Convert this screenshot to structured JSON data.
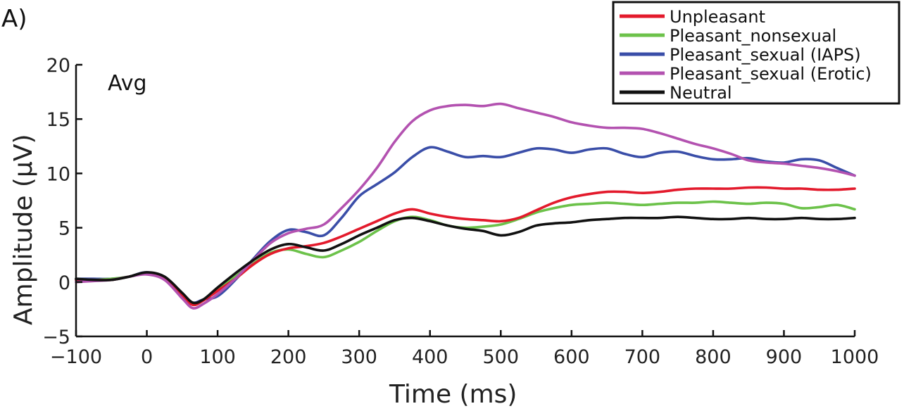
{
  "panel_label": "A)",
  "chart_data": {
    "type": "line",
    "annotation": "Avg",
    "xlabel": "Time (ms)",
    "ylabel": "Amplitude (μV)",
    "xlim": [
      -100,
      1000
    ],
    "ylim": [
      -5,
      20
    ],
    "xticks": [
      -100,
      0,
      100,
      200,
      300,
      400,
      500,
      600,
      700,
      800,
      900,
      1000
    ],
    "yticks": [
      -5,
      0,
      5,
      10,
      15,
      20
    ],
    "xtick_labels": [
      "−100",
      "0",
      "100",
      "200",
      "300",
      "400",
      "500",
      "600",
      "700",
      "800",
      "900",
      "1000"
    ],
    "ytick_labels": [
      "−5",
      "0",
      "5",
      "10",
      "15",
      "20"
    ],
    "grid": false,
    "legend_position": "top-right",
    "series": [
      {
        "name": "Unpleasant",
        "color": "#e31a2c",
        "x": [
          -100,
          -75,
          -50,
          -25,
          0,
          25,
          50,
          65,
          80,
          100,
          125,
          150,
          175,
          200,
          225,
          250,
          275,
          300,
          325,
          350,
          375,
          400,
          425,
          450,
          475,
          500,
          525,
          550,
          575,
          600,
          625,
          650,
          675,
          700,
          725,
          750,
          775,
          800,
          825,
          850,
          875,
          900,
          925,
          950,
          975,
          1000
        ],
        "y": [
          0.2,
          0.2,
          0.2,
          0.5,
          0.8,
          0.3,
          -1.3,
          -2.1,
          -1.7,
          -0.8,
          0.3,
          1.6,
          2.6,
          3.1,
          3.3,
          3.6,
          4.2,
          4.9,
          5.6,
          6.3,
          6.7,
          6.3,
          6.0,
          5.8,
          5.7,
          5.6,
          5.9,
          6.6,
          7.3,
          7.8,
          8.1,
          8.3,
          8.3,
          8.2,
          8.3,
          8.5,
          8.6,
          8.6,
          8.6,
          8.7,
          8.7,
          8.6,
          8.6,
          8.5,
          8.5,
          8.6
        ]
      },
      {
        "name": "Pleasant_nonsexual",
        "color": "#6cc24a",
        "x": [
          -100,
          -75,
          -50,
          -25,
          0,
          25,
          50,
          65,
          80,
          100,
          125,
          150,
          175,
          200,
          225,
          250,
          275,
          300,
          325,
          350,
          375,
          400,
          425,
          450,
          475,
          500,
          525,
          550,
          575,
          600,
          625,
          650,
          675,
          700,
          725,
          750,
          775,
          800,
          825,
          850,
          875,
          900,
          925,
          950,
          975,
          1000
        ],
        "y": [
          0.3,
          0.2,
          0.3,
          0.5,
          0.8,
          0.3,
          -1.2,
          -2.0,
          -1.6,
          -0.7,
          0.5,
          1.7,
          2.7,
          3.0,
          2.6,
          2.3,
          2.9,
          3.7,
          4.7,
          5.6,
          6.0,
          5.7,
          5.2,
          5.0,
          5.1,
          5.3,
          5.8,
          6.4,
          6.8,
          7.1,
          7.2,
          7.3,
          7.2,
          7.1,
          7.2,
          7.3,
          7.3,
          7.4,
          7.3,
          7.2,
          7.3,
          7.2,
          6.8,
          6.9,
          7.1,
          6.7
        ]
      },
      {
        "name": "Pleasant_sexual (IAPS)",
        "color": "#3a4ea8",
        "x": [
          -100,
          -75,
          -50,
          -25,
          0,
          25,
          50,
          65,
          80,
          100,
          125,
          150,
          175,
          200,
          225,
          250,
          275,
          300,
          325,
          350,
          375,
          400,
          425,
          450,
          475,
          500,
          525,
          550,
          575,
          600,
          625,
          650,
          675,
          700,
          725,
          750,
          775,
          800,
          825,
          850,
          875,
          900,
          925,
          950,
          975,
          1000
        ],
        "y": [
          0.3,
          0.3,
          0.3,
          0.5,
          0.9,
          0.3,
          -1.2,
          -1.9,
          -1.6,
          -1.3,
          0.2,
          2.1,
          3.8,
          4.8,
          4.6,
          4.3,
          5.9,
          7.9,
          9.0,
          10.1,
          11.5,
          12.4,
          12.0,
          11.5,
          11.6,
          11.5,
          11.9,
          12.3,
          12.2,
          11.9,
          12.2,
          12.3,
          11.8,
          11.5,
          11.9,
          12.0,
          11.6,
          11.3,
          11.3,
          11.4,
          11.1,
          11.0,
          11.3,
          11.2,
          10.5,
          9.8
        ]
      },
      {
        "name": "Pleasant_sexual (Erotic)",
        "color": "#b352b0",
        "x": [
          -100,
          -75,
          -50,
          -25,
          0,
          25,
          50,
          65,
          80,
          100,
          125,
          150,
          175,
          200,
          225,
          250,
          275,
          300,
          325,
          350,
          375,
          400,
          425,
          450,
          475,
          500,
          525,
          550,
          575,
          600,
          625,
          650,
          675,
          700,
          725,
          750,
          775,
          800,
          825,
          850,
          875,
          900,
          925,
          950,
          975,
          1000
        ],
        "y": [
          0.0,
          0.1,
          0.2,
          0.5,
          0.7,
          0.2,
          -1.5,
          -2.4,
          -2.0,
          -1.1,
          0.3,
          2.0,
          3.6,
          4.5,
          4.9,
          5.3,
          6.8,
          8.5,
          10.5,
          12.9,
          14.8,
          15.8,
          16.2,
          16.3,
          16.2,
          16.4,
          16.0,
          15.6,
          15.2,
          14.7,
          14.4,
          14.2,
          14.2,
          14.1,
          13.7,
          13.2,
          12.7,
          12.3,
          11.8,
          11.2,
          11.0,
          10.9,
          10.7,
          10.5,
          10.2,
          9.8
        ]
      },
      {
        "name": "Neutral",
        "color": "#111111",
        "x": [
          -100,
          -75,
          -50,
          -25,
          0,
          25,
          50,
          65,
          80,
          100,
          125,
          150,
          175,
          200,
          225,
          250,
          275,
          300,
          325,
          350,
          375,
          400,
          425,
          450,
          475,
          500,
          525,
          550,
          575,
          600,
          625,
          650,
          675,
          700,
          725,
          750,
          775,
          800,
          825,
          850,
          875,
          900,
          925,
          950,
          975,
          1000
        ],
        "y": [
          0.3,
          0.2,
          0.2,
          0.5,
          0.9,
          0.5,
          -1.0,
          -1.9,
          -1.6,
          -0.5,
          0.8,
          2.0,
          3.0,
          3.5,
          3.2,
          2.9,
          3.5,
          4.3,
          5.0,
          5.7,
          5.9,
          5.6,
          5.2,
          4.9,
          4.7,
          4.3,
          4.6,
          5.2,
          5.4,
          5.5,
          5.7,
          5.8,
          5.9,
          5.9,
          5.9,
          6.0,
          5.9,
          5.8,
          5.8,
          5.9,
          5.8,
          5.8,
          5.9,
          5.8,
          5.8,
          5.9
        ]
      }
    ]
  }
}
